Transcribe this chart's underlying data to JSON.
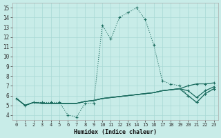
{
  "xlabel": "Humidex (Indice chaleur)",
  "bg_color": "#c8ece8",
  "grid_color": "#a8d8d4",
  "line_color": "#1a6b5e",
  "x_values": [
    0,
    1,
    2,
    3,
    4,
    5,
    6,
    7,
    8,
    9,
    10,
    11,
    12,
    13,
    14,
    15,
    16,
    17,
    18,
    19,
    20,
    21,
    22,
    23
  ],
  "line_main": [
    5.7,
    5.0,
    5.3,
    5.3,
    5.3,
    5.3,
    4.0,
    3.8,
    5.2,
    5.2,
    13.2,
    11.8,
    14.0,
    14.5,
    15.0,
    13.8,
    11.2,
    7.5,
    7.2,
    7.0,
    6.0,
    5.3,
    6.2,
    6.7
  ],
  "line2": [
    5.7,
    5.0,
    5.3,
    5.2,
    5.2,
    5.2,
    5.2,
    5.2,
    5.4,
    5.5,
    5.7,
    5.8,
    5.9,
    6.0,
    6.1,
    6.2,
    6.3,
    6.5,
    6.6,
    6.7,
    7.0,
    7.2,
    7.2,
    7.3
  ],
  "line3": [
    5.7,
    5.0,
    5.3,
    5.2,
    5.2,
    5.2,
    5.2,
    5.2,
    5.4,
    5.5,
    5.7,
    5.8,
    5.9,
    6.0,
    6.1,
    6.2,
    6.3,
    6.5,
    6.6,
    6.7,
    6.5,
    5.8,
    6.5,
    6.9
  ],
  "line4": [
    5.7,
    5.0,
    5.3,
    5.2,
    5.2,
    5.2,
    5.2,
    5.2,
    5.4,
    5.5,
    5.7,
    5.8,
    5.9,
    6.0,
    6.1,
    6.2,
    6.3,
    6.5,
    6.6,
    6.7,
    6.0,
    5.3,
    6.2,
    6.7
  ],
  "ylim": [
    3.5,
    15.5
  ],
  "xlim": [
    -0.5,
    23.5
  ],
  "yticks": [
    4,
    5,
    6,
    7,
    8,
    9,
    10,
    11,
    12,
    13,
    14,
    15
  ],
  "xticks": [
    0,
    1,
    2,
    3,
    4,
    5,
    6,
    7,
    8,
    9,
    10,
    11,
    12,
    13,
    14,
    15,
    16,
    17,
    18,
    19,
    20,
    21,
    22,
    23
  ]
}
